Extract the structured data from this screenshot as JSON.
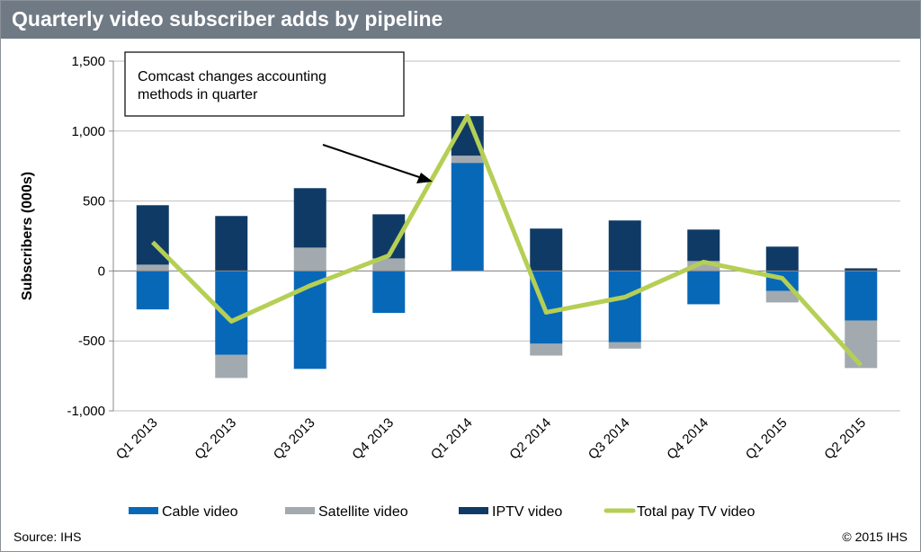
{
  "chart_data": {
    "type": "bar",
    "stacked": true,
    "title": "Quarterly video subscriber adds by pipeline",
    "ylabel": "Subscribers (000s)",
    "xlabel": "",
    "ylim": [
      -1000,
      1500
    ],
    "yticks": [
      -1000,
      -500,
      0,
      500,
      1000,
      1500
    ],
    "ytick_labels": [
      "-1,000",
      "-500",
      "0",
      "500",
      "1,000",
      "1,500"
    ],
    "grid": true,
    "legend": "bottom",
    "categories": [
      "Q1 2013",
      "Q2 2013",
      "Q3 2013",
      "Q4 2013",
      "Q1 2014",
      "Q2 2014",
      "Q3 2014",
      "Q4 2014",
      "Q1 2015",
      "Q2 2015"
    ],
    "series": [
      {
        "name": "Cable video",
        "kind": "bar",
        "color": "#0868b8",
        "values": [
          -275,
          -600,
          -700,
          -300,
          773,
          -520,
          -510,
          -238,
          -142,
          -354
        ]
      },
      {
        "name": "Satellite video",
        "kind": "bar",
        "color": "#a2aab0",
        "values": [
          45,
          -165,
          167,
          90,
          51,
          -85,
          -45,
          71,
          -83,
          -340
        ]
      },
      {
        "name": "IPTV video",
        "kind": "bar",
        "color": "#103a66",
        "values": [
          425,
          393,
          425,
          315,
          283,
          303,
          361,
          225,
          174,
          19
        ]
      },
      {
        "name": "Total pay TV video",
        "kind": "line",
        "color": "#b5cf55",
        "values": [
          206,
          -360,
          -105,
          110,
          1107,
          -296,
          -187,
          64,
          -52,
          -676
        ]
      }
    ],
    "annotation": {
      "text_line1": "Comcast changes accounting",
      "text_line2": "methods in quarter",
      "points_to": "Q1 2014"
    }
  },
  "footer": {
    "source": "Source: IHS",
    "copyright": "© 2015 IHS"
  }
}
